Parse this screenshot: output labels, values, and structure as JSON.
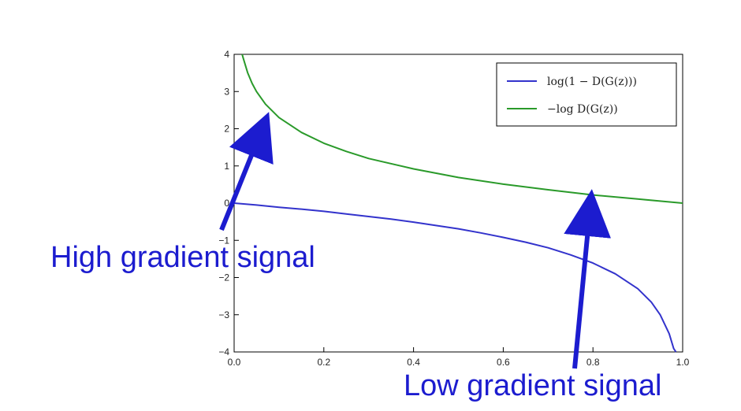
{
  "chart_data": {
    "type": "line",
    "title": "",
    "xlabel": "",
    "ylabel": "",
    "xlim": [
      0.0,
      1.0
    ],
    "ylim": [
      -4,
      4
    ],
    "grid": false,
    "legend_position": "top-right",
    "x_ticks": [
      "0.0",
      "0.2",
      "0.4",
      "0.6",
      "0.8",
      "1.0"
    ],
    "y_ticks": [
      "4",
      "3",
      "2",
      "1",
      "0",
      "−1",
      "−2",
      "−3",
      "−4"
    ],
    "series": [
      {
        "name": "log(1 − D(G(z)))",
        "color": "#3333cc",
        "x": [
          0.0,
          0.05,
          0.1,
          0.15,
          0.2,
          0.25,
          0.3,
          0.35,
          0.4,
          0.45,
          0.5,
          0.55,
          0.6,
          0.65,
          0.7,
          0.75,
          0.8,
          0.85,
          0.9,
          0.93,
          0.95,
          0.97,
          0.98,
          0.985
        ],
        "y": [
          0.0,
          -0.05,
          -0.11,
          -0.16,
          -0.22,
          -0.29,
          -0.36,
          -0.43,
          -0.51,
          -0.6,
          -0.69,
          -0.8,
          -0.92,
          -1.05,
          -1.2,
          -1.39,
          -1.61,
          -1.9,
          -2.3,
          -2.66,
          -3.0,
          -3.51,
          -3.91,
          -4.0
        ]
      },
      {
        "name": "−log D(G(z))",
        "color": "#2a9a2a",
        "x": [
          0.018,
          0.02,
          0.03,
          0.04,
          0.05,
          0.07,
          0.1,
          0.15,
          0.2,
          0.25,
          0.3,
          0.4,
          0.5,
          0.6,
          0.7,
          0.8,
          0.9,
          1.0
        ],
        "y": [
          4.0,
          3.91,
          3.51,
          3.22,
          3.0,
          2.66,
          2.3,
          1.9,
          1.61,
          1.39,
          1.2,
          0.92,
          0.69,
          0.51,
          0.36,
          0.22,
          0.11,
          0.0
        ]
      }
    ],
    "annotations": [
      {
        "text": "High gradient signal",
        "color": "#1c1ccf"
      },
      {
        "text": "Low gradient signal",
        "color": "#1c1ccf"
      }
    ]
  }
}
